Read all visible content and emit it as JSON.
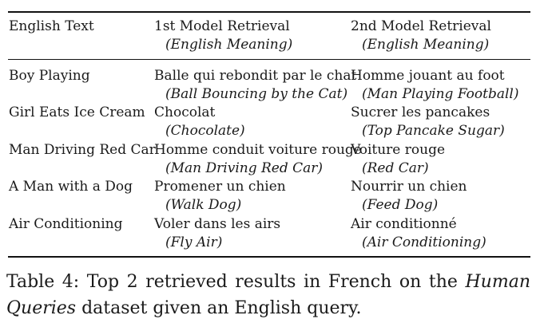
{
  "table": {
    "headers": {
      "col1": "English Text",
      "col2_title": "1st Model Retrieval",
      "col2_sub": "(English Meaning)",
      "col3_title": "2nd Model Retrieval",
      "col3_sub": "(English Meaning)"
    },
    "rows": [
      {
        "english": "Boy Playing",
        "m1_fr": "Balle qui rebondit par le chat",
        "m1_en": "(Ball Bouncing by the Cat)",
        "m2_fr": "Homme jouant au foot",
        "m2_en": "(Man Playing Football)"
      },
      {
        "english": "Girl Eats Ice Cream",
        "m1_fr": "Chocolat",
        "m1_en": "(Chocolate)",
        "m2_fr": "Sucrer les pancakes",
        "m2_en": "(Top Pancake Sugar)"
      },
      {
        "english": "Man Driving Red Car",
        "m1_fr": "Homme conduit voiture rouge",
        "m1_en": "(Man Driving Red Car)",
        "m2_fr": "Voiture rouge",
        "m2_en": "(Red Car)"
      },
      {
        "english": "A Man with a Dog",
        "m1_fr": "Promener un chien",
        "m1_en": "(Walk Dog)",
        "m2_fr": "Nourrir un chien",
        "m2_en": "(Feed Dog)"
      },
      {
        "english": "Air Conditioning",
        "m1_fr": "Voler dans les airs",
        "m1_en": "(Fly Air)",
        "m2_fr": "Air conditionné",
        "m2_en": "(Air Conditioning)"
      }
    ]
  },
  "caption": {
    "prefix": "Table 4: Top 2 retrieved results in French on the",
    "dataset_part1": "Human",
    "dataset_part2": "Queries",
    "suffix": " dataset given an English query."
  }
}
